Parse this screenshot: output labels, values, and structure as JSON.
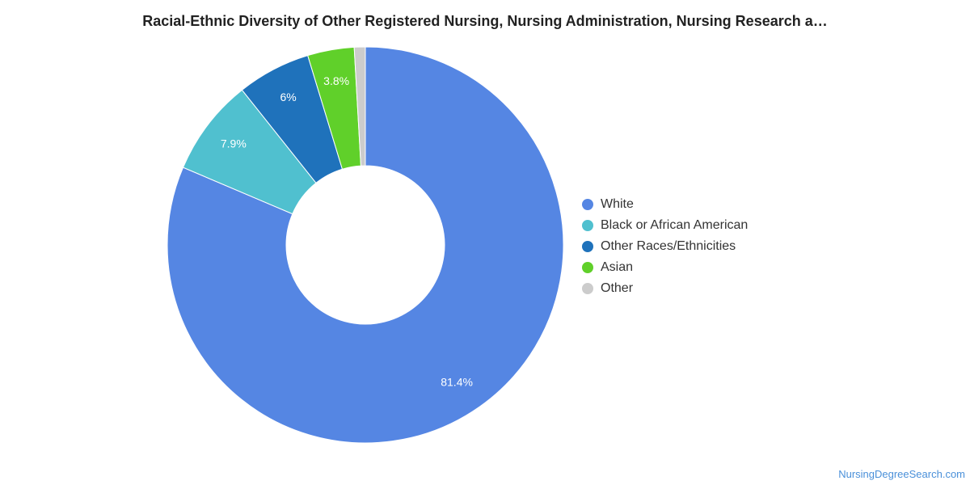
{
  "chart_data": {
    "type": "pie",
    "title": "Racial-Ethnic Diversity of Other Registered Nursing, Nursing Administration, Nursing Research a…",
    "donut": true,
    "categories": [
      "White",
      "Black or African American",
      "Other Races/Ethnicities",
      "Asian",
      "Other"
    ],
    "values": [
      81.4,
      7.9,
      6,
      3.8,
      0.9
    ],
    "data_labels": [
      "81.4%",
      "7.9%",
      "6%",
      "3.8%",
      ""
    ],
    "colors": [
      "#5586e3",
      "#50c0cf",
      "#1f72bb",
      "#60d02a",
      "#cccccc"
    ],
    "legend_position": "right"
  },
  "footer": {
    "source": "NursingDegreeSearch.com"
  }
}
